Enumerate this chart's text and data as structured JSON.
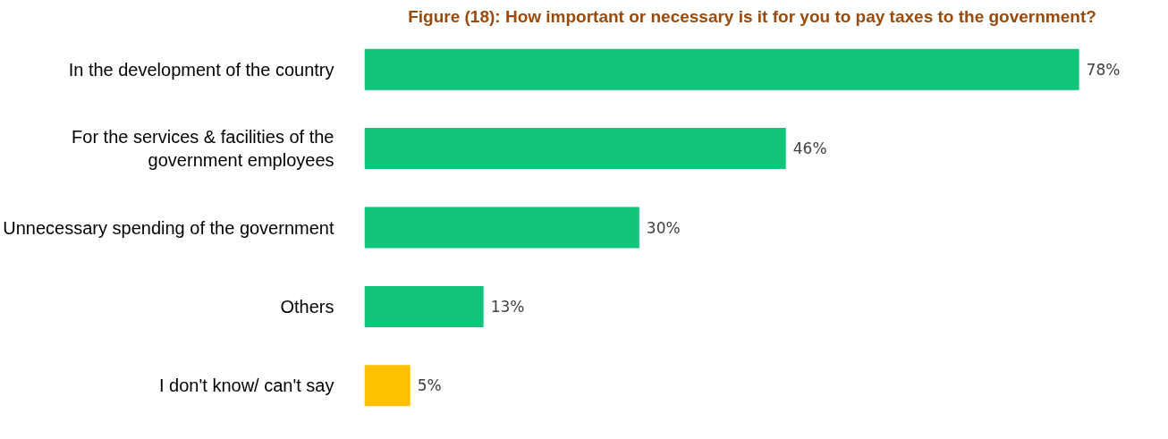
{
  "chart_data": {
    "type": "bar",
    "orientation": "horizontal",
    "title": "Figure (18): How important or necessary is it for you to pay taxes to the government?",
    "categories": [
      "In the development of the country",
      "For the services & facilities of the government employees",
      "Unnecessary spending of the government",
      "Others",
      "I don't know/ can't say"
    ],
    "values": [
      78,
      46,
      30,
      13,
      5
    ],
    "colors": [
      "#10c47a",
      "#10c47a",
      "#10c47a",
      "#10c47a",
      "#ffc000"
    ],
    "value_labels": [
      "78%",
      "46%",
      "30%",
      "13%",
      "5%"
    ],
    "grid": false
  }
}
